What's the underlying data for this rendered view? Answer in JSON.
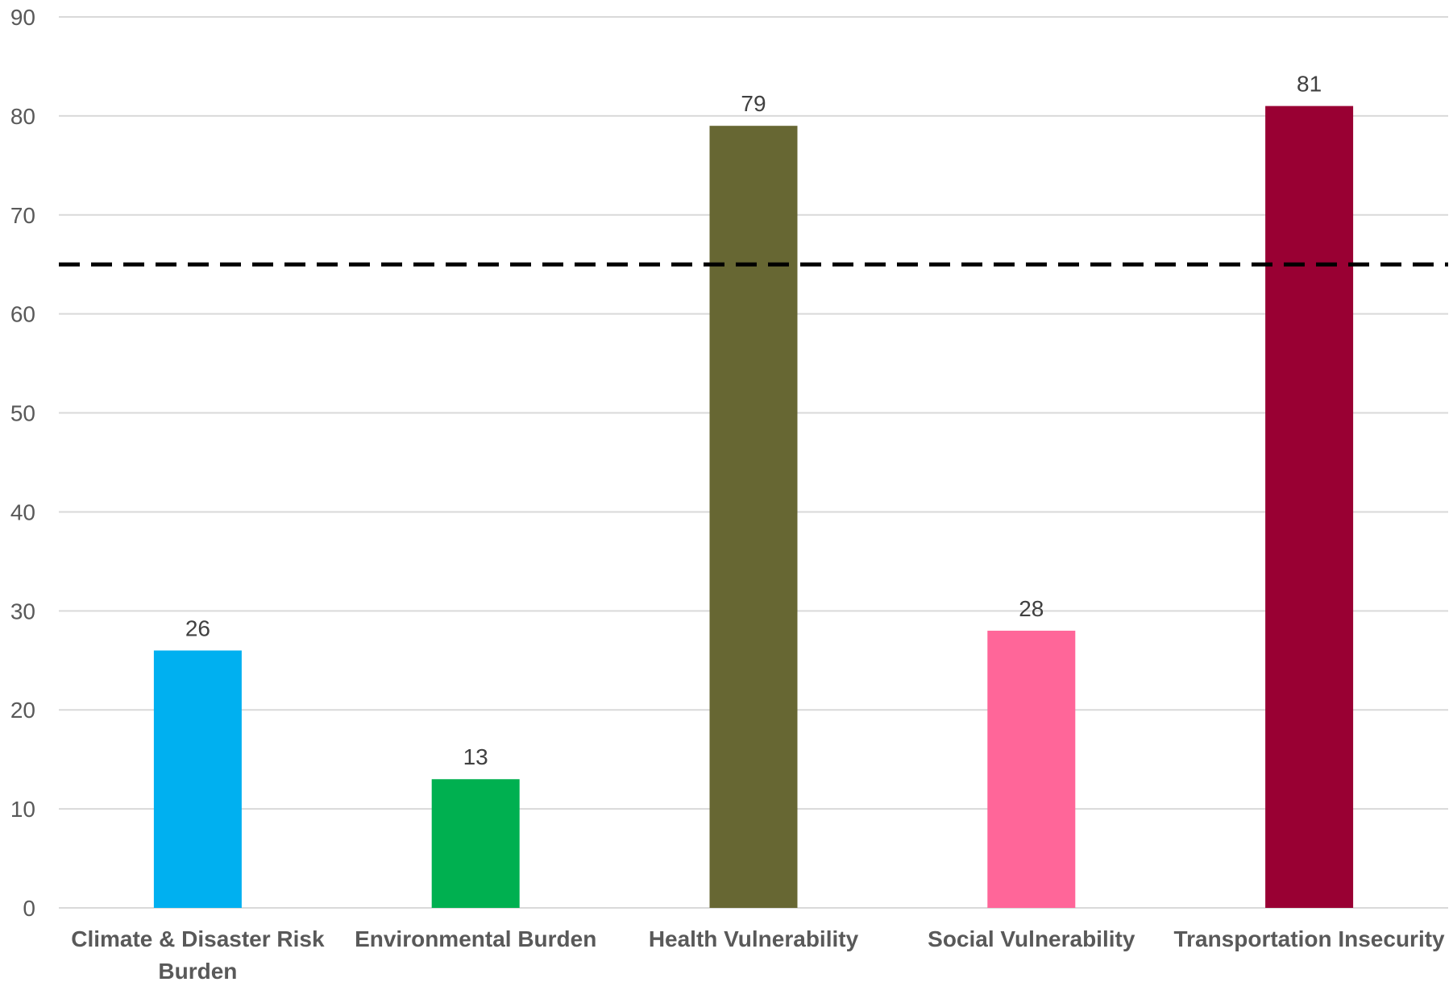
{
  "chart_data": {
    "type": "bar",
    "title": "",
    "xlabel": "",
    "ylabel": "",
    "categories": [
      [
        "Climate & Disaster Risk",
        "Burden"
      ],
      [
        "Environmental Burden"
      ],
      [
        "Health Vulnerability"
      ],
      [
        "Social Vulnerability"
      ],
      [
        "Transportation Insecurity"
      ]
    ],
    "values": [
      26,
      13,
      79,
      28,
      81
    ],
    "colors": [
      "#00b0f0",
      "#00b050",
      "#676733",
      "#ff6699",
      "#990033"
    ],
    "ylim": [
      0,
      90
    ],
    "yticks": [
      0,
      10,
      20,
      30,
      40,
      50,
      60,
      70,
      80,
      90
    ],
    "grid": true,
    "legend": "none",
    "data_labels": true,
    "threshold": 65
  }
}
